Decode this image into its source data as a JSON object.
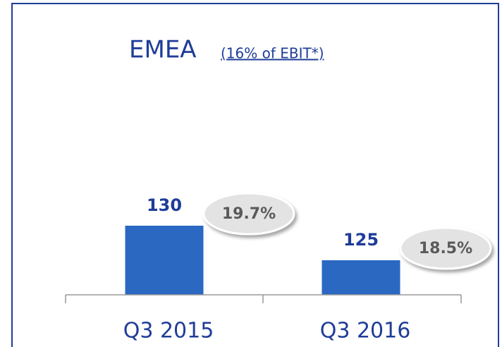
{
  "chart_data": {
    "type": "bar",
    "title": "EMEA",
    "subtitle": "(16% of EBIT*)",
    "categories": [
      "Q3 2015",
      "Q3 2016"
    ],
    "values": [
      130,
      125
    ],
    "color": "#2a68c2",
    "annotations": [
      "19.7%",
      "18.5%"
    ],
    "ylim": [
      120,
      150
    ]
  }
}
